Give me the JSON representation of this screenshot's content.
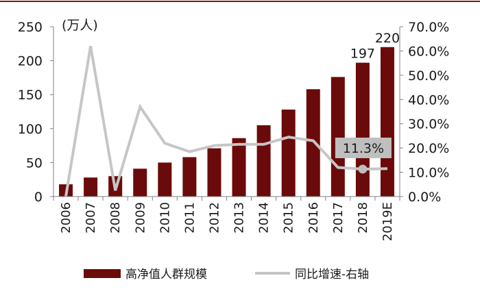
{
  "chart_data": {
    "type": "bar+line",
    "unit_label": "(万人)",
    "categories": [
      "2006",
      "2007",
      "2008",
      "2009",
      "2010",
      "2011",
      "2012",
      "2013",
      "2014",
      "2015",
      "2016",
      "2017",
      "2018",
      "2019E"
    ],
    "series": [
      {
        "name": "高净值人群规模",
        "type": "bar",
        "axis": "left",
        "color": "#6b0a0a",
        "values": [
          18,
          28,
          30,
          41,
          50,
          58,
          71,
          86,
          105,
          128,
          158,
          176,
          197,
          220
        ]
      },
      {
        "name": "同比增速-右轴",
        "type": "line",
        "axis": "right",
        "color": "#c6c6c6",
        "values": [
          0.0,
          62.0,
          2.5,
          37.0,
          22.0,
          18.5,
          21.0,
          21.5,
          21.5,
          24.5,
          23.0,
          12.0,
          11.3,
          11.5
        ]
      }
    ],
    "y_left": {
      "min": 0,
      "max": 250,
      "ticks": [
        "0",
        "50",
        "100",
        "150",
        "200",
        "250"
      ]
    },
    "y_right": {
      "min": 0,
      "max": 70,
      "ticks": [
        "0.0%",
        "10.0%",
        "20.0%",
        "30.0%",
        "40.0%",
        "50.0%",
        "60.0%",
        "70.0%"
      ]
    },
    "bar_labels": [
      {
        "index": 12,
        "text": "197"
      },
      {
        "index": 13,
        "text": "220"
      }
    ],
    "callout": {
      "index": 12,
      "text": "11.3%"
    },
    "legend": {
      "position": "bottom",
      "bar_label": "高净值人群规模",
      "line_label": "同比增速-右轴"
    },
    "colors": {
      "bar": "#6b0a0a",
      "line": "#c6c6c6",
      "axis": "#808080",
      "top_rule": "#7a1a1a",
      "callout_bg": "#bfbfbf"
    }
  }
}
